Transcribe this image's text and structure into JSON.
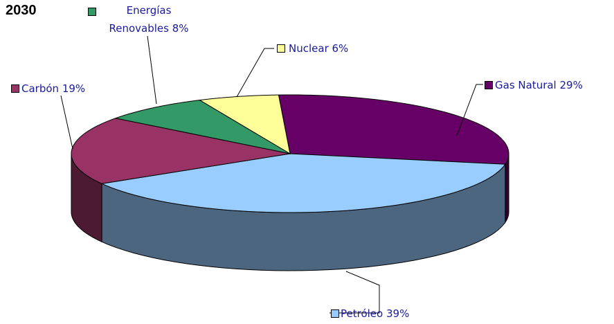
{
  "chart_data": {
    "type": "pie3d",
    "title": "2030",
    "categories": [
      "Gas Natural",
      "Petróleo",
      "Carbón",
      "Energías Renovables",
      "Nuclear"
    ],
    "values": [
      29,
      39,
      19,
      8,
      6
    ],
    "value_labels": [
      "29%",
      "39%",
      "19%",
      "8%",
      "6%"
    ],
    "colors": [
      "#660066",
      "#99ccff",
      "#993366",
      "#339966",
      "#ffff99"
    ]
  }
}
